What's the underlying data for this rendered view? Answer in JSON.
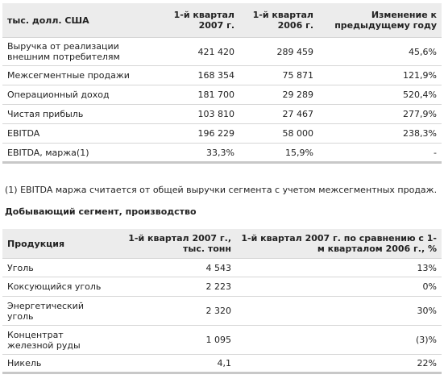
{
  "financials": {
    "headers": [
      "тыс. долл. США",
      "1-й квартал 2007 г.",
      "1-й квартал 2006 г.",
      "Изменение к предыдущему году"
    ],
    "rows": [
      [
        "Выручка от реализации внешним потребителям",
        "421 420",
        "289 459",
        "45,6%"
      ],
      [
        "Межсегментные продажи",
        "168 354",
        "75 871",
        "121,9%"
      ],
      [
        "Операционный доход",
        "181 700",
        "29 289",
        "520,4%"
      ],
      [
        "Чистая прибыль",
        "103 810",
        "27 467",
        "277,9%"
      ],
      [
        "EBITDA",
        "196 229",
        "58 000",
        "238,3%"
      ],
      [
        "EBITDA, маржа(1)",
        "33,3%",
        "15,9%",
        "-"
      ]
    ]
  },
  "note": "(1) EBITDA маржа считается от общей выручки сегмента с учетом межсегментных продаж.",
  "section_title": "Добывающий сегмент, производство",
  "production": {
    "headers": [
      "Продукция",
      "1-й квартал 2007 г., тыс. тонн",
      "1-й квартал 2007 г. по сравнению с 1-м кварталом 2006 г., %"
    ],
    "rows": [
      [
        "Уголь",
        "4 543",
        "13%"
      ],
      [
        "Коксующийся уголь",
        "2 223",
        "0%"
      ],
      [
        "Энергетический уголь",
        "2 320",
        "30%"
      ],
      [
        "Концентрат железной руды",
        "1 095",
        "(3)%"
      ],
      [
        "Никель",
        "4,1",
        "22%"
      ]
    ]
  }
}
